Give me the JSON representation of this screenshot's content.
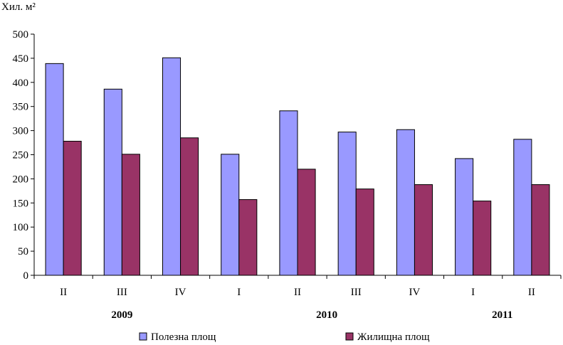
{
  "chart_data": {
    "type": "bar",
    "title": "",
    "ylabel": "Хил. м²",
    "xlabel": "",
    "ylim": [
      0,
      500
    ],
    "yticks": [
      0,
      50,
      100,
      150,
      200,
      250,
      300,
      350,
      400,
      450,
      500
    ],
    "categories": [
      "II",
      "III",
      "IV",
      "I",
      "II",
      "III",
      "IV",
      "I",
      "II"
    ],
    "year_groups": [
      {
        "label": "2009",
        "from": 0,
        "to": 2
      },
      {
        "label": "2010",
        "from": 3,
        "to": 6
      },
      {
        "label": "2011",
        "from": 7,
        "to": 8
      }
    ],
    "series": [
      {
        "name": "Полезна площ",
        "color": "#9999ff",
        "values": [
          439,
          386,
          451,
          251,
          341,
          297,
          302,
          242,
          282
        ]
      },
      {
        "name": "Жилищна площ",
        "color": "#993366",
        "values": [
          278,
          251,
          285,
          157,
          220,
          179,
          188,
          154,
          188
        ]
      }
    ],
    "grid": false,
    "legend": "bottom"
  }
}
